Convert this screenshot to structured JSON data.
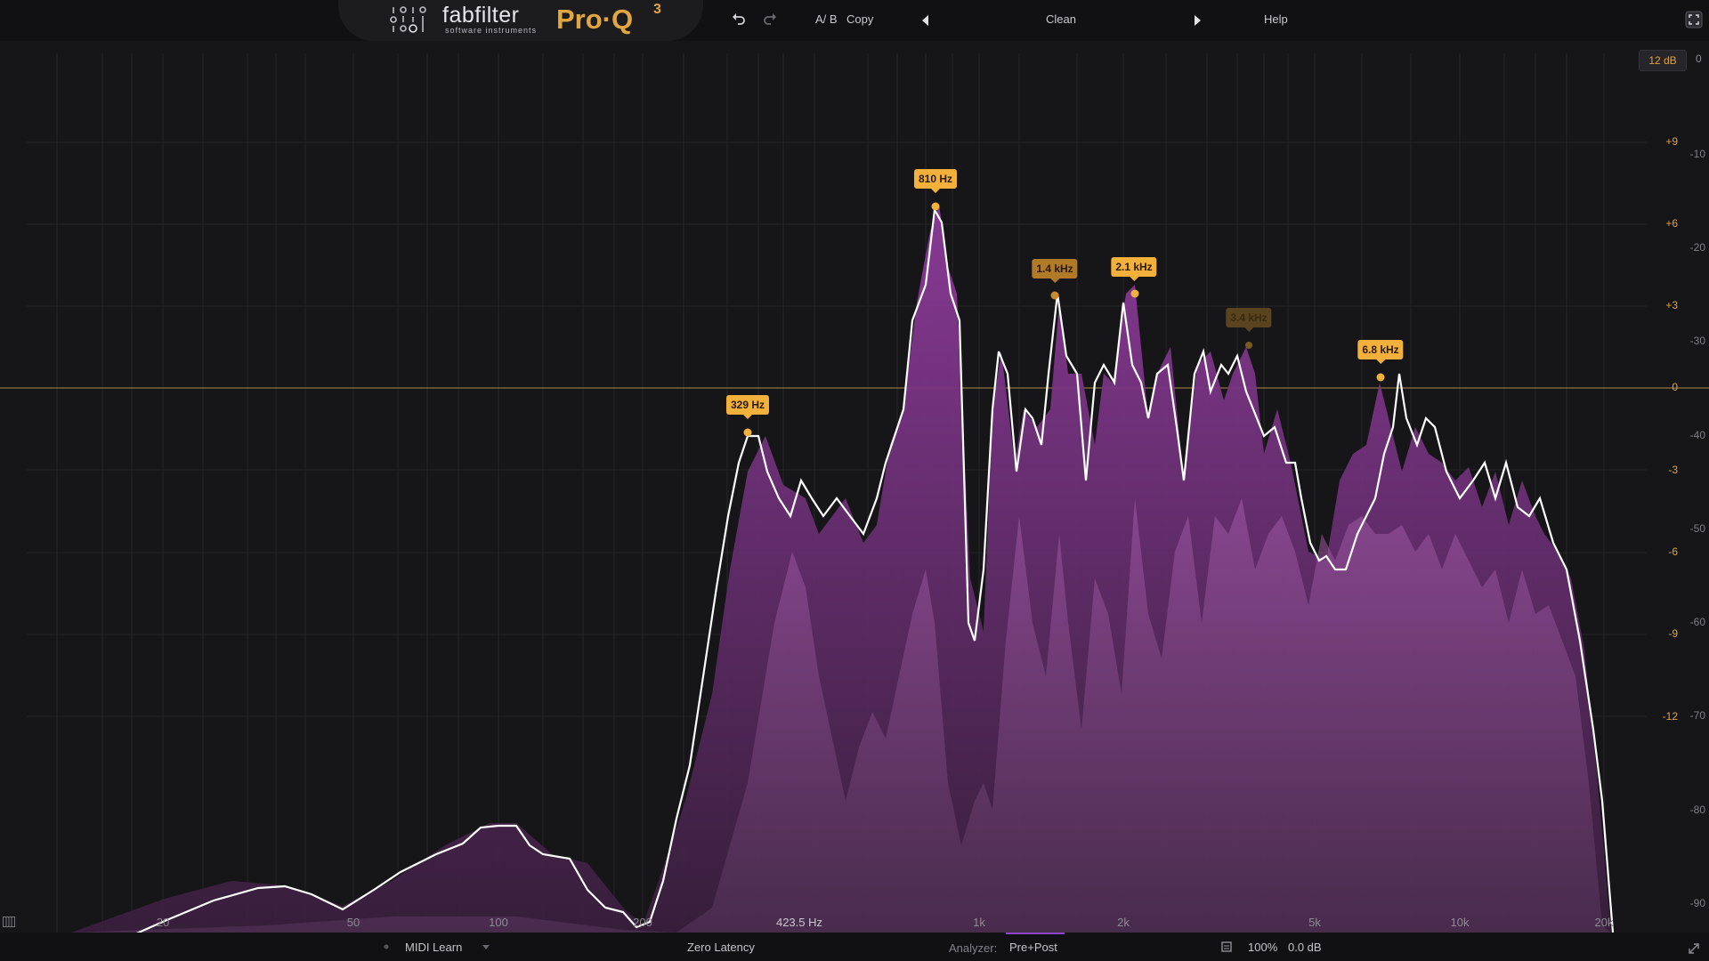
{
  "header": {
    "brand_name": "fabfilter",
    "brand_sub": "software instruments",
    "product_name": "Pro·Q",
    "product_version": "3",
    "ab_label": "A/ B",
    "copy_label": "Copy",
    "preset_name": "Clean",
    "help_label": "Help",
    "icons": [
      "logo-icon",
      "undo-icon",
      "redo-icon",
      "prev-preset-icon",
      "next-preset-icon",
      "fullscreen-icon"
    ]
  },
  "display": {
    "range_label": "12 dB",
    "range_zero": "0",
    "eq_scale": [
      "+9",
      "+6",
      "+3",
      "0",
      "-3",
      "-6",
      "-9",
      "-12"
    ],
    "analyzer_scale": [
      "-10",
      "-20",
      "-30",
      "-40",
      "-50",
      "-60",
      "-70",
      "-80",
      "-90"
    ],
    "freq_labels": [
      "20",
      "50",
      "100",
      "200",
      "423.5 Hz",
      "1k",
      "2k",
      "5k",
      "10k",
      "20k"
    ],
    "band_labels": [
      "329 Hz",
      "810 Hz",
      "1.4 kHz",
      "2.1 kHz",
      "3.4 kHz",
      "6.8 kHz"
    ],
    "colors": {
      "accent": "#f3b13c",
      "spectrum": "#7c2e86",
      "curve": "#ffffff"
    }
  },
  "footer": {
    "midi_learn": "MIDI Learn",
    "latency": "Zero Latency",
    "analyzer_label": "Analyzer:",
    "analyzer_value": "Pre+Post",
    "zoom": "100%",
    "output_gain": "0.0 dB"
  }
}
